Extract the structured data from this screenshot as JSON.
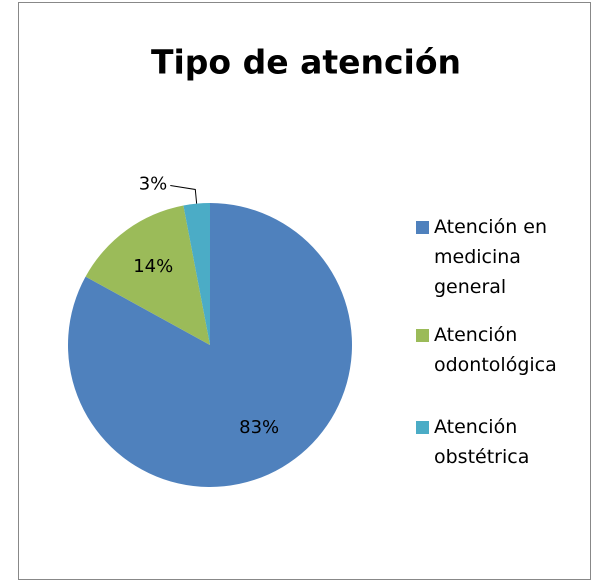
{
  "chart_data": {
    "type": "pie",
    "title": "Tipo de atención",
    "categories": [
      "Atención en medicina general",
      "Atención odontológica",
      "Atención obstétrica"
    ],
    "values": [
      83,
      14,
      3
    ],
    "value_labels": [
      "83%",
      "14%",
      "3%"
    ],
    "colors": [
      "#4f81bd",
      "#9bbb59",
      "#4bacc6"
    ],
    "legend": "right"
  }
}
